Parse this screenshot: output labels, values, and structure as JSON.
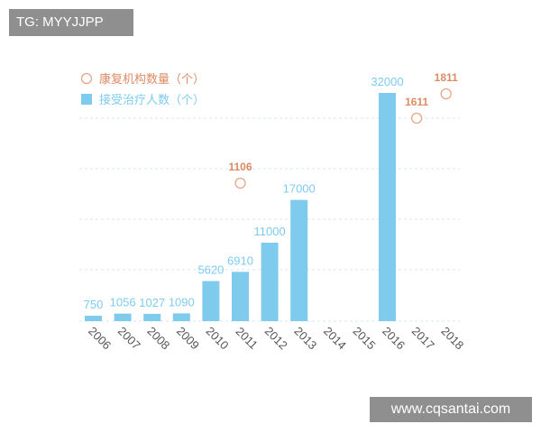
{
  "watermark_top": "TG: MYYJJPP",
  "watermark_bottom": "www.cqsantai.com",
  "chart_data": {
    "type": "bar",
    "categories": [
      "2006",
      "2007",
      "2008",
      "2009",
      "2010",
      "2011",
      "2012",
      "2013",
      "2014",
      "2015",
      "2016",
      "2017",
      "2018"
    ],
    "series": [
      {
        "name": "接受治疗人数（个）",
        "kind": "bar",
        "values": [
          750,
          1056,
          1027,
          1090,
          5620,
          6910,
          11000,
          17000,
          null,
          null,
          32000,
          null,
          null
        ],
        "labels": [
          "750",
          "1056",
          "1027",
          "1090",
          "5620",
          "6910",
          "11000",
          "17000",
          "",
          "",
          "32000",
          "",
          ""
        ]
      },
      {
        "name": "康复机构数量（个）",
        "kind": "scatter",
        "points": [
          {
            "x": "2011",
            "y": 1106,
            "label": "1106"
          },
          {
            "x": "2017",
            "y": 1611,
            "label": "1611"
          },
          {
            "x": "2018",
            "y": 1811,
            "label": "1811"
          }
        ]
      }
    ],
    "title": "",
    "xlabel": "",
    "ylabel": "",
    "ylim": [
      0,
      33000
    ],
    "grid": "dashed-horizontal",
    "legend_position": "top-left",
    "colors": {
      "bar": "#7ecbee",
      "bar_label": "#7ecbee",
      "point": "#e8a788",
      "point_label": "#dc8c64",
      "grid": "#d5e8f2",
      "tick_text": "#555555"
    }
  }
}
